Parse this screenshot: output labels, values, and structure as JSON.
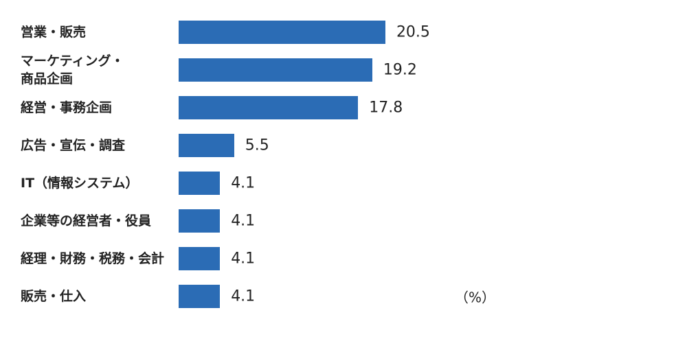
{
  "chart_data": {
    "type": "bar",
    "orientation": "horizontal",
    "categories": [
      "営業・販売",
      "マーケティング・\n商品企画",
      "経営・事務企画",
      "広告・宣伝・調査",
      "IT（情報システム）",
      "企業等の経営者・役員",
      "経理・財務・税務・会計",
      "販売・仕入"
    ],
    "values": [
      20.5,
      19.2,
      17.8,
      5.5,
      4.1,
      4.1,
      4.1,
      4.1
    ],
    "color": "#2b6cb5",
    "unit_label": "（%）"
  }
}
